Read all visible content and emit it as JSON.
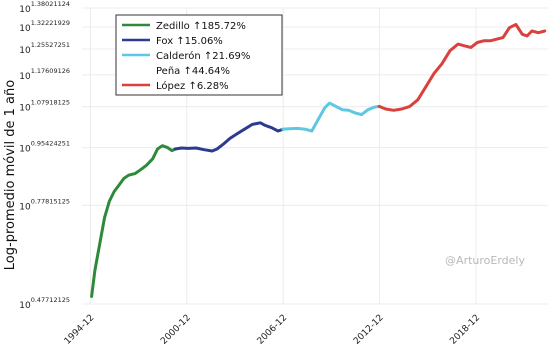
{
  "chart_data": {
    "type": "line",
    "title": "",
    "xlabel": "",
    "ylabel": "Log-promedio móvil de 1 año",
    "yscale": "log",
    "grid": true,
    "legend_position": "top-left",
    "watermark": "@ArturoErdely",
    "xlim": [
      1994.4,
      2023.4
    ],
    "ylim": [
      0.47712125,
      1.38021124
    ],
    "x_ticks": [
      "1994-12",
      "2000-12",
      "2006-12",
      "2012-12",
      "2018-12"
    ],
    "x_tick_values": [
      1994.92,
      2000.92,
      2006.92,
      2012.92,
      2018.92
    ],
    "y_ticks": [
      {
        "base": "10",
        "exp": "0.47712125",
        "value": 0.47712125
      },
      {
        "base": "10",
        "exp": "0.77815125",
        "value": 0.77815125
      },
      {
        "base": "10",
        "exp": "0.95424251",
        "value": 0.95424251
      },
      {
        "base": "10",
        "exp": "1.07918125",
        "value": 1.07918125
      },
      {
        "base": "10",
        "exp": "1.17609126",
        "value": 1.17609126
      },
      {
        "base": "10",
        "exp": "1.25527251",
        "value": 1.25527251
      },
      {
        "base": "10",
        "exp": "1.32221929",
        "value": 1.32221929
      },
      {
        "base": "10",
        "exp": "1.38021124",
        "value": 1.38021124
      }
    ],
    "series": [
      {
        "name": "Zedillo ↑185.72%",
        "color": "#2d8a3a",
        "x": [
          1995.0,
          1995.2,
          1995.5,
          1995.8,
          1996.1,
          1996.4,
          1996.7,
          1997.0,
          1997.3,
          1997.7,
          1998.0,
          1998.4,
          1998.8,
          1999.1,
          1999.4,
          1999.7,
          2000.0,
          2000.2
        ],
        "y": [
          0.5,
          0.58,
          0.66,
          0.74,
          0.79,
          0.82,
          0.84,
          0.86,
          0.87,
          0.875,
          0.885,
          0.9,
          0.92,
          0.95,
          0.96,
          0.955,
          0.945,
          0.95
        ]
      },
      {
        "name": "Fox ↑15.06%",
        "color": "#2b3c8f",
        "x": [
          2000.2,
          2000.6,
          2001.0,
          2001.5,
          2002.0,
          2002.5,
          2002.8,
          2003.2,
          2003.6,
          2004.0,
          2004.5,
          2005.0,
          2005.5,
          2005.8,
          2006.2,
          2006.6,
          2006.9
        ],
        "y": [
          0.95,
          0.953,
          0.952,
          0.953,
          0.948,
          0.944,
          0.95,
          0.965,
          0.982,
          0.995,
          1.01,
          1.025,
          1.03,
          1.022,
          1.015,
          1.005,
          1.01
        ]
      },
      {
        "name": "Calderón ↑21.69%",
        "color": "#5ec8e0",
        "x": [
          2006.9,
          2007.3,
          2007.8,
          2008.3,
          2008.7,
          2009.1,
          2009.5,
          2009.8,
          2010.2,
          2010.6,
          2011.0,
          2011.4,
          2011.8,
          2012.2,
          2012.6,
          2012.9
        ],
        "y": [
          1.01,
          1.012,
          1.013,
          1.01,
          1.005,
          1.04,
          1.075,
          1.09,
          1.08,
          1.07,
          1.068,
          1.06,
          1.055,
          1.07,
          1.078,
          1.08
        ]
      },
      {
        "name": "Peña ↑44.64%",
        "color": "#ffffff",
        "x": [],
        "y": []
      },
      {
        "name": "López ↑6.28%",
        "color": "#d9413c",
        "x": [
          2012.9,
          2013.3,
          2013.8,
          2014.3,
          2014.8,
          2015.3,
          2015.8,
          2016.3,
          2016.8,
          2017.3,
          2017.8,
          2018.2,
          2018.6,
          2019.0,
          2019.4,
          2019.8,
          2020.2,
          2020.6,
          2021.0,
          2021.4,
          2021.8,
          2022.1,
          2022.4,
          2022.8,
          2023.2
        ],
        "y": [
          1.08,
          1.072,
          1.068,
          1.072,
          1.08,
          1.1,
          1.14,
          1.18,
          1.21,
          1.25,
          1.27,
          1.265,
          1.26,
          1.275,
          1.28,
          1.28,
          1.285,
          1.29,
          1.32,
          1.33,
          1.3,
          1.295,
          1.31,
          1.305,
          1.31
        ]
      }
    ]
  }
}
